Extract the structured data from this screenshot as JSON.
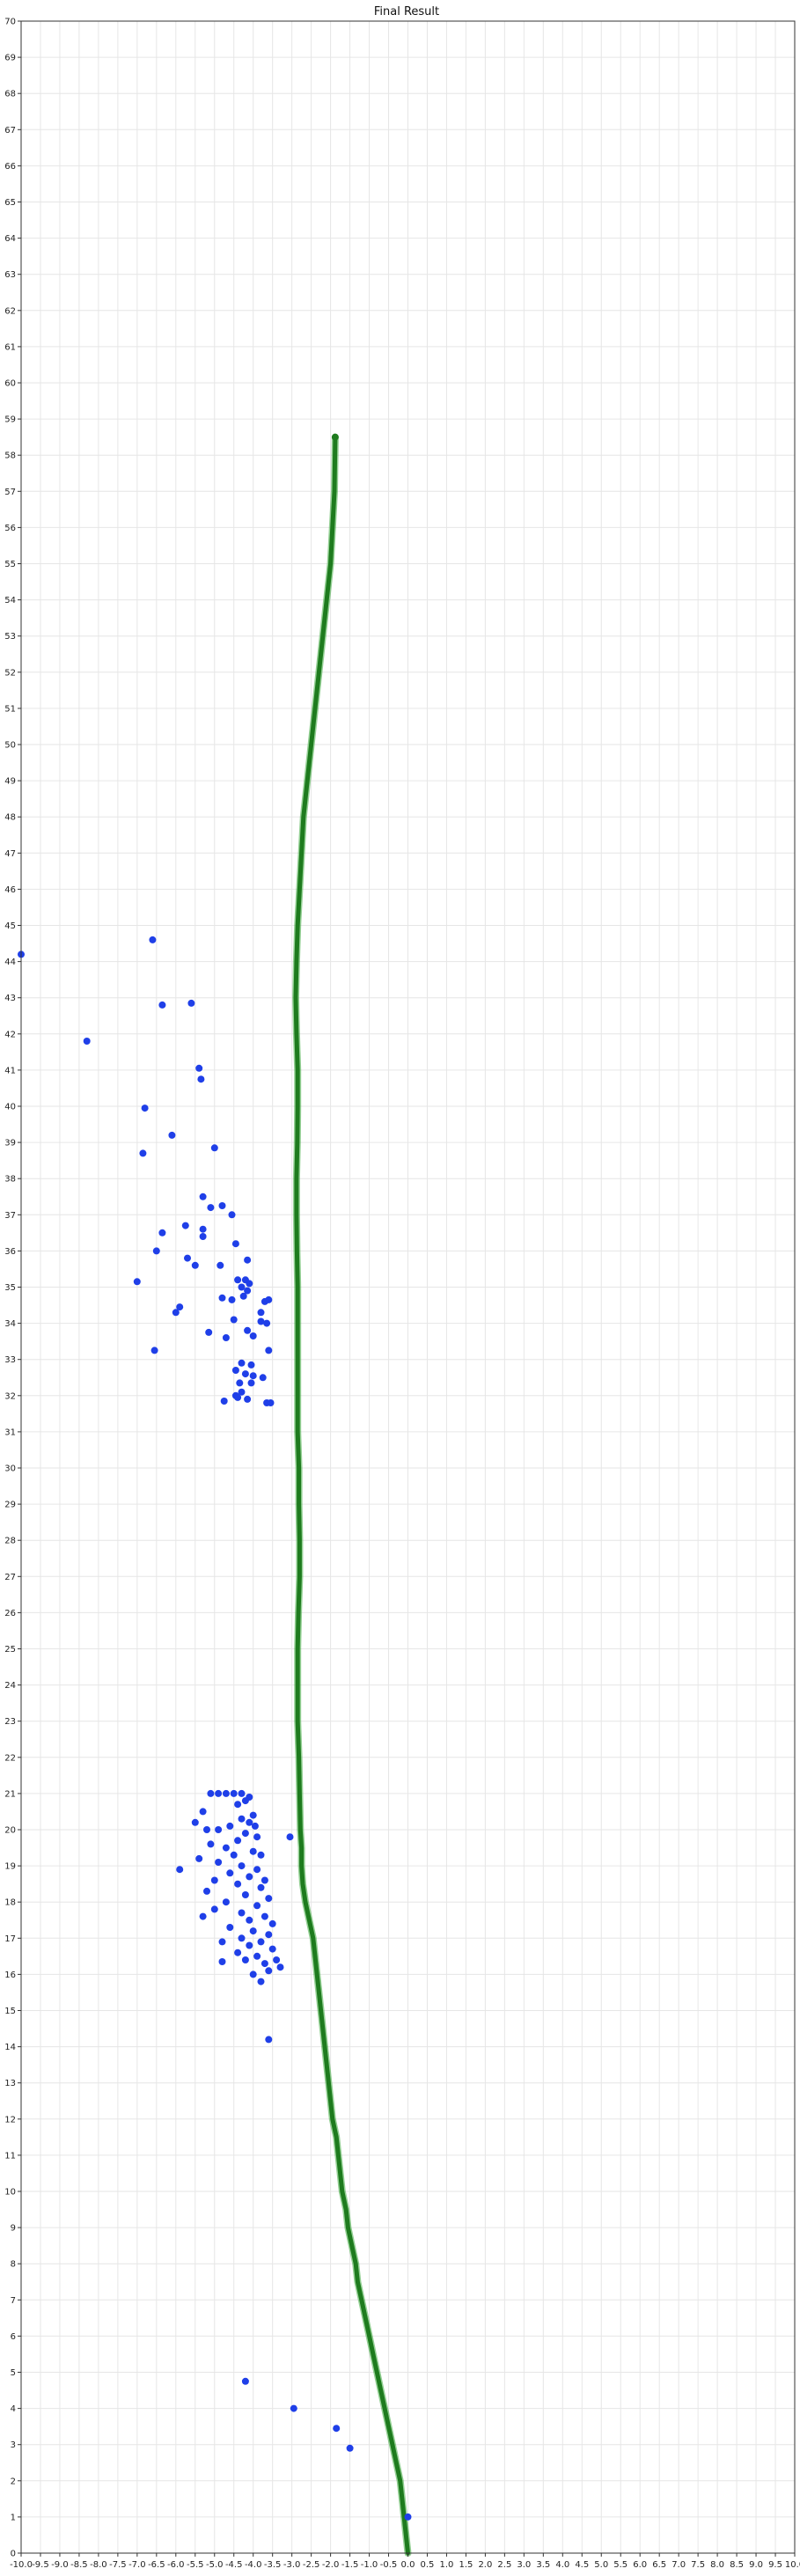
{
  "chart_data": {
    "type": "scatter",
    "title": "Final Result",
    "xlabel": "",
    "ylabel": "",
    "xlim": [
      -10,
      10
    ],
    "ylim": [
      0,
      70
    ],
    "x_tick_step": 0.5,
    "y_tick_step": 1,
    "grid": true,
    "colors": {
      "path": "#1e7b1e",
      "path_edge": "#3caa3c",
      "points": "#1f3fe8"
    },
    "series": [
      {
        "name": "",
        "kind": "path",
        "color": "#1e7b1e",
        "x": [
          0.0,
          -0.05,
          -0.1,
          -0.15,
          -0.2,
          -0.3,
          -0.4,
          -0.5,
          -0.6,
          -0.7,
          -0.8,
          -0.9,
          -1.0,
          -1.1,
          -1.2,
          -1.3,
          -1.35,
          -1.45,
          -1.55,
          -1.6,
          -1.7,
          -1.75,
          -1.8,
          -1.85,
          -1.95,
          -2.05,
          -2.15,
          -2.25,
          -2.35,
          -2.45,
          -2.55,
          -2.65,
          -2.72,
          -2.75,
          -2.75,
          -2.78,
          -2.8,
          -2.82,
          -2.85,
          -2.85,
          -2.85,
          -2.83,
          -2.8,
          -2.8,
          -2.82,
          -2.82,
          -2.85,
          -2.85,
          -2.85,
          -2.85,
          -2.85,
          -2.87,
          -2.88,
          -2.88,
          -2.86,
          -2.85,
          -2.85,
          -2.88,
          -2.9,
          -2.88,
          -2.85,
          -2.8,
          -2.75,
          -2.7,
          -2.6,
          -2.5,
          -2.4,
          -2.3,
          -2.2,
          -2.1,
          -2.0,
          -1.95,
          -1.9,
          -1.88
        ],
        "y": [
          0.0,
          0.5,
          1.0,
          1.5,
          2.0,
          2.5,
          3.0,
          3.5,
          4.0,
          4.5,
          5.0,
          5.5,
          6.0,
          6.5,
          7.0,
          7.5,
          8.0,
          8.5,
          9.0,
          9.5,
          10.0,
          10.5,
          11.0,
          11.5,
          12.0,
          13.0,
          14.0,
          15.0,
          16.0,
          17.0,
          17.5,
          18.0,
          18.5,
          19.0,
          19.5,
          20.0,
          21.0,
          22.0,
          23.0,
          24.0,
          25.0,
          26.0,
          27.0,
          28.0,
          29.0,
          30.0,
          31.0,
          32.0,
          33.0,
          34.0,
          35.0,
          36.0,
          37.0,
          38.0,
          39.0,
          40.0,
          41.0,
          42.0,
          43.0,
          44.0,
          45.0,
          46.0,
          47.0,
          48.0,
          49.0,
          50.0,
          51.0,
          52.0,
          53.0,
          54.0,
          55.0,
          56.0,
          57.0,
          58.5
        ]
      },
      {
        "name": "",
        "kind": "points",
        "color": "#1f3fe8",
        "points": [
          [
            -10.0,
            44.2
          ],
          [
            -8.3,
            41.8
          ],
          [
            -6.6,
            44.6
          ],
          [
            -6.35,
            42.8
          ],
          [
            -5.6,
            42.85
          ],
          [
            -5.4,
            41.05
          ],
          [
            -5.35,
            40.75
          ],
          [
            -6.8,
            39.95
          ],
          [
            -6.1,
            39.2
          ],
          [
            -5.0,
            38.85
          ],
          [
            -6.85,
            38.7
          ],
          [
            -5.3,
            37.5
          ],
          [
            -5.1,
            37.2
          ],
          [
            -4.8,
            37.25
          ],
          [
            -4.55,
            37.0
          ],
          [
            -5.75,
            36.7
          ],
          [
            -5.3,
            36.6
          ],
          [
            -6.35,
            36.5
          ],
          [
            -5.3,
            36.4
          ],
          [
            -4.45,
            36.2
          ],
          [
            -6.5,
            36.0
          ],
          [
            -5.7,
            35.8
          ],
          [
            -4.15,
            35.75
          ],
          [
            -5.5,
            35.6
          ],
          [
            -4.85,
            35.6
          ],
          [
            -7.0,
            35.15
          ],
          [
            -4.4,
            35.2
          ],
          [
            -4.2,
            35.2
          ],
          [
            -4.1,
            35.1
          ],
          [
            -4.3,
            35.0
          ],
          [
            -4.15,
            34.9
          ],
          [
            -4.25,
            34.75
          ],
          [
            -4.8,
            34.7
          ],
          [
            -4.55,
            34.65
          ],
          [
            -3.7,
            34.6
          ],
          [
            -3.6,
            34.65
          ],
          [
            -5.9,
            34.45
          ],
          [
            -6.0,
            34.3
          ],
          [
            -3.8,
            34.3
          ],
          [
            -4.5,
            34.1
          ],
          [
            -3.8,
            34.05
          ],
          [
            -3.65,
            34.0
          ],
          [
            -5.15,
            33.75
          ],
          [
            -4.7,
            33.6
          ],
          [
            -4.15,
            33.8
          ],
          [
            -4.0,
            33.65
          ],
          [
            -6.55,
            33.25
          ],
          [
            -3.6,
            33.25
          ],
          [
            -4.3,
            32.9
          ],
          [
            -4.05,
            32.85
          ],
          [
            -4.45,
            32.7
          ],
          [
            -4.2,
            32.6
          ],
          [
            -4.0,
            32.55
          ],
          [
            -3.75,
            32.5
          ],
          [
            -4.35,
            32.35
          ],
          [
            -4.05,
            32.35
          ],
          [
            -4.45,
            32.0
          ],
          [
            -4.3,
            32.1
          ],
          [
            -4.75,
            31.85
          ],
          [
            -4.15,
            31.9
          ],
          [
            -3.65,
            31.8
          ],
          [
            -3.55,
            31.8
          ],
          [
            -4.4,
            31.95
          ],
          [
            -5.1,
            21.0
          ],
          [
            -4.9,
            21.0
          ],
          [
            -4.7,
            21.0
          ],
          [
            -4.5,
            21.0
          ],
          [
            -4.3,
            21.0
          ],
          [
            -4.1,
            20.9
          ],
          [
            -4.2,
            20.8
          ],
          [
            -4.4,
            20.7
          ],
          [
            -5.3,
            20.5
          ],
          [
            -4.0,
            20.4
          ],
          [
            -4.3,
            20.3
          ],
          [
            -4.1,
            20.2
          ],
          [
            -5.5,
            20.2
          ],
          [
            -3.95,
            20.1
          ],
          [
            -4.6,
            20.1
          ],
          [
            -4.9,
            20.0
          ],
          [
            -5.2,
            20.0
          ],
          [
            -4.2,
            19.9
          ],
          [
            -3.9,
            19.8
          ],
          [
            -4.4,
            19.7
          ],
          [
            -3.05,
            19.8
          ],
          [
            -5.1,
            19.6
          ],
          [
            -4.7,
            19.5
          ],
          [
            -4.0,
            19.4
          ],
          [
            -3.8,
            19.3
          ],
          [
            -4.5,
            19.3
          ],
          [
            -5.4,
            19.2
          ],
          [
            -4.9,
            19.1
          ],
          [
            -4.3,
            19.0
          ],
          [
            -3.9,
            18.9
          ],
          [
            -5.9,
            18.9
          ],
          [
            -4.6,
            18.8
          ],
          [
            -4.1,
            18.7
          ],
          [
            -3.7,
            18.6
          ],
          [
            -5.0,
            18.6
          ],
          [
            -4.4,
            18.5
          ],
          [
            -3.8,
            18.4
          ],
          [
            -5.2,
            18.3
          ],
          [
            -4.2,
            18.2
          ],
          [
            -3.6,
            18.1
          ],
          [
            -4.7,
            18.0
          ],
          [
            -3.9,
            17.9
          ],
          [
            -5.0,
            17.8
          ],
          [
            -4.3,
            17.7
          ],
          [
            -3.7,
            17.6
          ],
          [
            -5.3,
            17.6
          ],
          [
            -4.1,
            17.5
          ],
          [
            -3.5,
            17.4
          ],
          [
            -4.6,
            17.3
          ],
          [
            -4.0,
            17.2
          ],
          [
            -3.6,
            17.1
          ],
          [
            -4.3,
            17.0
          ],
          [
            -3.8,
            16.9
          ],
          [
            -4.8,
            16.9
          ],
          [
            -4.1,
            16.8
          ],
          [
            -3.5,
            16.7
          ],
          [
            -4.4,
            16.6
          ],
          [
            -3.9,
            16.5
          ],
          [
            -3.4,
            16.4
          ],
          [
            -4.2,
            16.4
          ],
          [
            -3.7,
            16.3
          ],
          [
            -4.8,
            16.35
          ],
          [
            -3.3,
            16.2
          ],
          [
            -3.6,
            16.1
          ],
          [
            -4.0,
            16.0
          ],
          [
            -3.8,
            15.8
          ],
          [
            -3.6,
            14.2
          ],
          [
            -4.2,
            4.75
          ],
          [
            -2.95,
            4.0
          ],
          [
            -1.85,
            3.45
          ],
          [
            -1.5,
            2.9
          ],
          [
            0.0,
            1.0
          ]
        ]
      }
    ]
  }
}
